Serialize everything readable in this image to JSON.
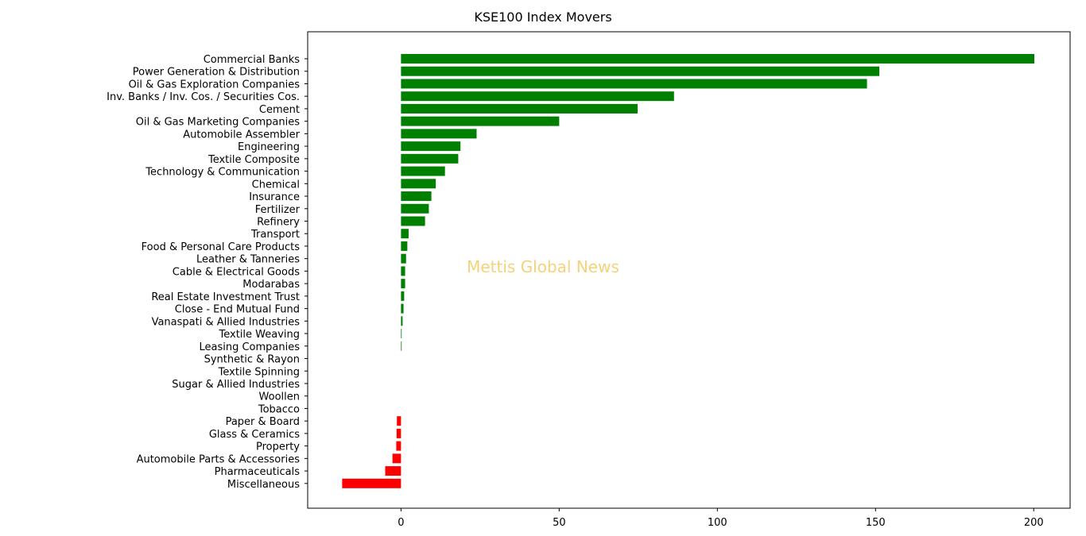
{
  "chart_data": {
    "type": "bar",
    "orientation": "horizontal",
    "title": "KSE100 Index Movers",
    "xlabel": "",
    "ylabel": "",
    "xlim": [
      -29.5,
      211.5
    ],
    "xticks": [
      0,
      50,
      100,
      150,
      200
    ],
    "grid": false,
    "watermark": "Mettis Global News",
    "colors": {
      "positive": "#008000",
      "negative": "#ff0000",
      "watermark": "#f5d27a"
    },
    "categories": [
      "Commercial Banks",
      "Power Generation & Distribution",
      "Oil & Gas Exploration Companies",
      "Inv. Banks / Inv. Cos. / Securities Cos.",
      "Cement",
      "Oil & Gas Marketing Companies",
      "Automobile Assembler",
      "Engineering",
      "Textile Composite",
      "Technology & Communication",
      "Chemical",
      "Insurance",
      "Fertilizer",
      "Refinery",
      "Transport",
      "Food & Personal Care Products",
      "Leather & Tanneries",
      "Cable & Electrical Goods",
      "Modarabas",
      "Real Estate Investment Trust",
      "Close - End Mutual Fund",
      "Vanaspati & Allied Industries",
      "Textile Weaving",
      "Leasing Companies",
      "Synthetic & Rayon",
      "Textile Spinning",
      "Sugar & Allied Industries",
      "Woollen",
      "Tobacco",
      "Paper & Board",
      "Glass & Ceramics",
      "Property",
      "Automobile Parts & Accessories",
      "Pharmaceuticals",
      "Miscellaneous"
    ],
    "values": [
      200.2,
      151.2,
      147.3,
      86.3,
      74.8,
      50.0,
      23.9,
      18.8,
      18.1,
      13.9,
      11.0,
      9.6,
      8.8,
      7.6,
      2.4,
      2.0,
      1.6,
      1.3,
      1.3,
      1.0,
      0.8,
      0.5,
      0.2,
      0.2,
      0,
      0,
      0,
      0,
      0,
      -1.3,
      -1.4,
      -1.5,
      -2.7,
      -5.0,
      -18.6
    ]
  }
}
